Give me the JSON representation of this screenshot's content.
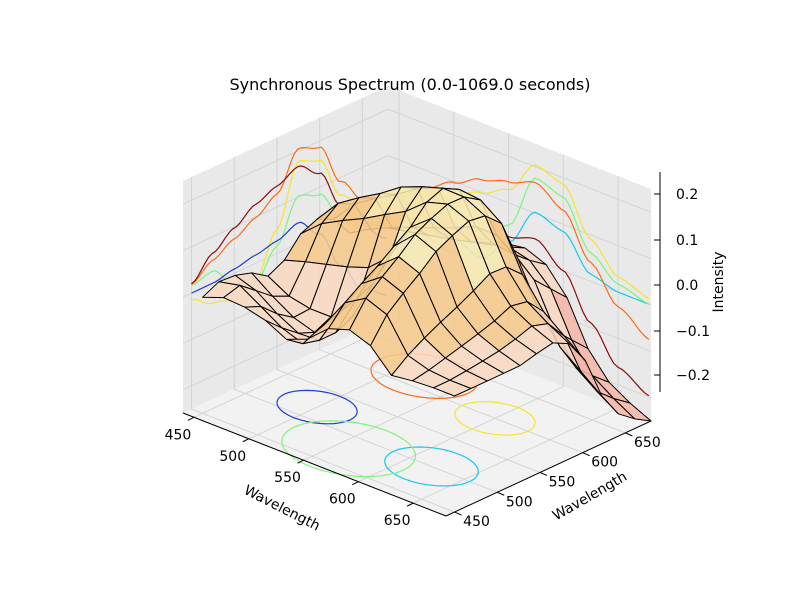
{
  "chart_data": {
    "type": "surface3d",
    "title": "Synchronous Spectrum (0.0-1069.0 seconds)",
    "xlabel": "Wavelength",
    "ylabel": "Wavelength",
    "zlabel": "Intensity",
    "xlim": [
      440,
      680
    ],
    "ylim": [
      440,
      680
    ],
    "zlim": [
      -0.25,
      0.25
    ],
    "x_ticks": [
      "450",
      "500",
      "550",
      "600",
      "650"
    ],
    "y_ticks": [
      "450",
      "500",
      "550",
      "600",
      "650"
    ],
    "z_ticks": [
      "−0.2",
      "−0.1",
      "0.0",
      "0.1",
      "0.2"
    ],
    "grid": true,
    "surface_grid": {
      "note_axes": "rows are y-wavelength from 450 to 680, columns are x-wavelength from 450 to 680",
      "x": [
        450,
        475,
        500,
        525,
        550,
        575,
        600,
        625,
        650,
        680
      ],
      "y": [
        450,
        475,
        500,
        525,
        550,
        575,
        600,
        625,
        650,
        680
      ],
      "z": [
        [
          0.0,
          0.02,
          0.01,
          -0.02,
          0.0,
          0.06,
          0.04,
          -0.01,
          0.0,
          0.0
        ],
        [
          0.02,
          0.03,
          -0.03,
          -0.05,
          0.02,
          0.12,
          0.1,
          0.02,
          0.0,
          0.0
        ],
        [
          0.01,
          -0.03,
          -0.08,
          -0.06,
          0.04,
          0.16,
          0.14,
          0.05,
          0.01,
          0.0
        ],
        [
          -0.02,
          -0.05,
          -0.06,
          -0.04,
          0.06,
          0.2,
          0.18,
          0.07,
          0.02,
          0.0
        ],
        [
          0.0,
          0.02,
          0.04,
          0.06,
          0.1,
          0.22,
          0.2,
          0.09,
          0.03,
          0.01
        ],
        [
          0.06,
          0.12,
          0.16,
          0.2,
          0.22,
          0.24,
          0.22,
          0.12,
          0.05,
          0.02
        ],
        [
          0.04,
          0.1,
          0.14,
          0.18,
          0.2,
          0.22,
          0.18,
          0.08,
          0.0,
          -0.05
        ],
        [
          -0.01,
          0.02,
          0.05,
          0.07,
          0.09,
          0.12,
          0.08,
          -0.02,
          -0.1,
          -0.15
        ],
        [
          0.0,
          0.0,
          0.01,
          0.02,
          0.03,
          0.05,
          0.0,
          -0.1,
          -0.18,
          -0.22
        ],
        [
          0.0,
          0.0,
          0.0,
          0.0,
          0.01,
          0.02,
          -0.05,
          -0.15,
          -0.22,
          -0.25
        ]
      ]
    },
    "colors": {
      "surface_high": "#f7e8b0",
      "surface_mid": "#f5c98a",
      "surface_low": "#f4b6a8",
      "wire": "#000000",
      "pane": "#f2f2f2",
      "pane_dark": "#e9e9e9",
      "grid": "#d4d4d4"
    }
  }
}
